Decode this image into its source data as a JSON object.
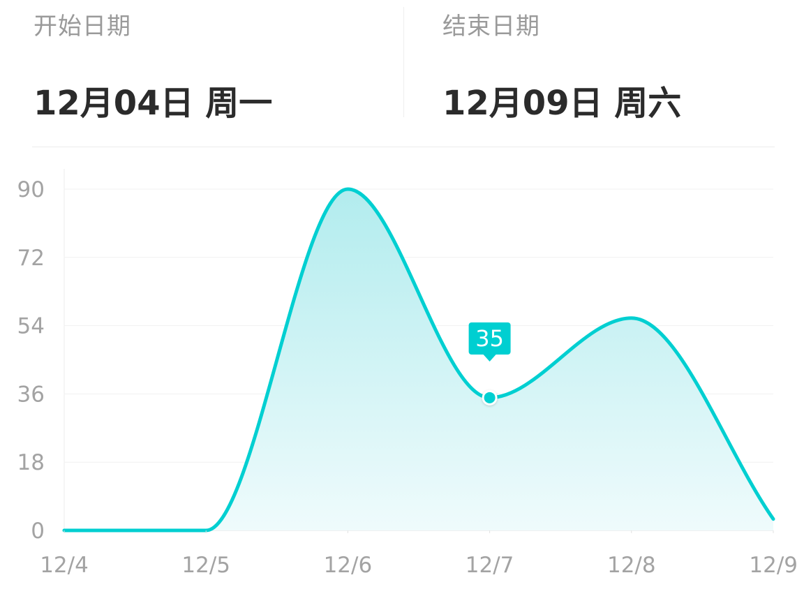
{
  "header": {
    "start": {
      "label": "开始日期",
      "value": "12月04日 周一"
    },
    "end": {
      "label": "结束日期",
      "value": "12月09日 周六"
    }
  },
  "colors": {
    "line": "#00cfd1",
    "area_top": "#b2ecee",
    "area_bottom": "#effbfc",
    "label_text": "#9a9a9a",
    "value_text": "#2b2b2b"
  },
  "chart_data": {
    "type": "area",
    "title": "",
    "xlabel": "",
    "ylabel": "",
    "categories": [
      "12/4",
      "12/5",
      "12/6",
      "12/7",
      "12/8",
      "12/9"
    ],
    "values": [
      0,
      0,
      90,
      35,
      56,
      3
    ],
    "ylim": [
      0,
      90
    ],
    "yticks": [
      0,
      18,
      36,
      54,
      72,
      90
    ],
    "smooth": true,
    "grid": true,
    "legend": "none",
    "tooltip": {
      "category": "12/7",
      "value": 35,
      "label": "35"
    }
  }
}
